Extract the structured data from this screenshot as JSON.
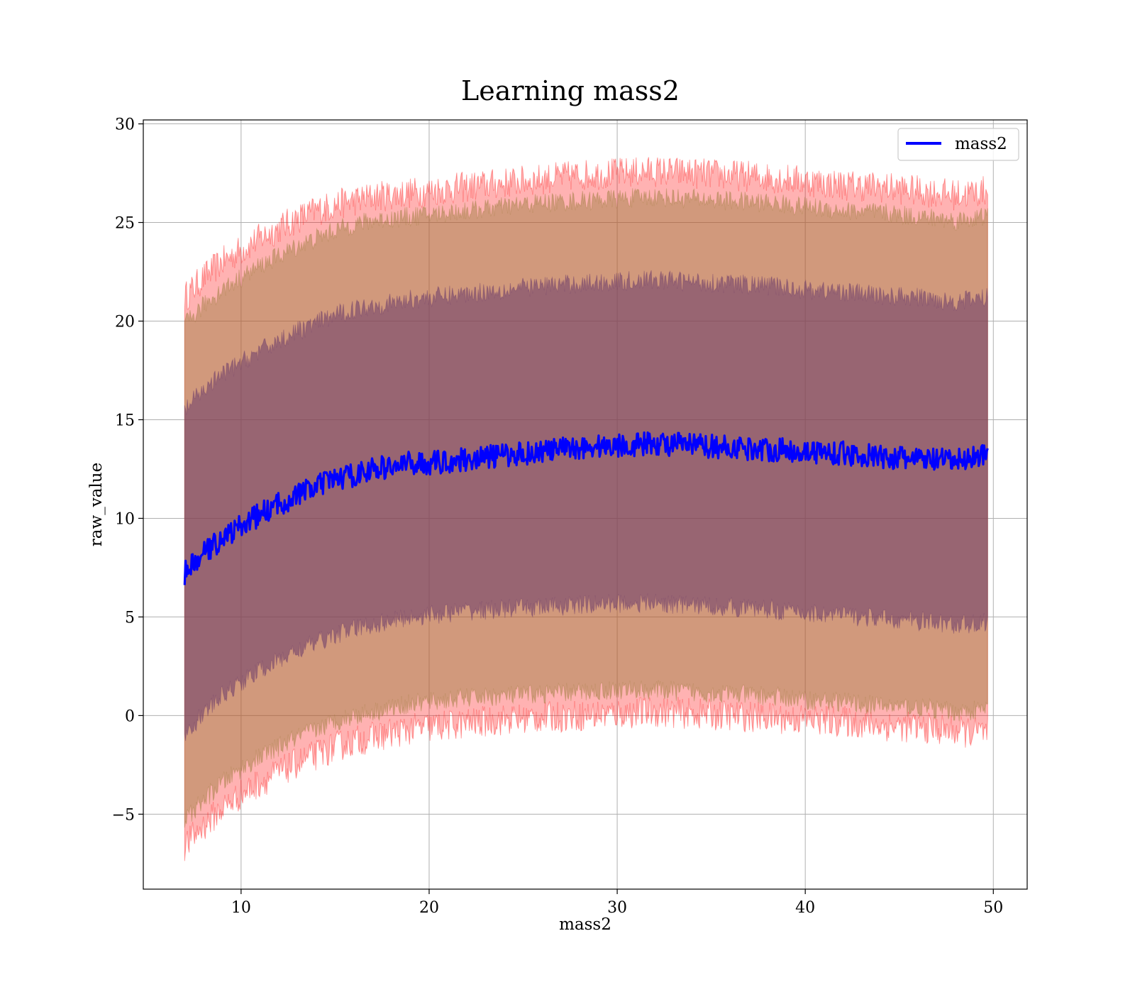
{
  "chart_data": {
    "type": "line",
    "title": "Learning mass2",
    "xlabel": "mass2",
    "ylabel": "raw_value",
    "xlim": [
      4.8,
      51.8
    ],
    "ylim": [
      -8.8,
      30.2
    ],
    "xticks": [
      10,
      20,
      30,
      40,
      50
    ],
    "yticks": [
      -5,
      0,
      5,
      10,
      15,
      20,
      25,
      30
    ],
    "xtick_labels": [
      "10",
      "20",
      "30",
      "40",
      "50"
    ],
    "ytick_labels": [
      "−5",
      "0",
      "5",
      "10",
      "15",
      "20",
      "25",
      "30"
    ],
    "grid": true,
    "legend": {
      "position": "top-right",
      "entries": [
        "mass2"
      ]
    },
    "colors": {
      "mean_line": "#0000ff",
      "band_outer": "#ff0000",
      "band_middle": "#9a7a3a",
      "band_inner": "#6a3a6a",
      "grid": "#b0b0b0"
    },
    "x_range": [
      7.0,
      49.7
    ],
    "series": [
      {
        "name": "mass2",
        "role": "mean",
        "x": [
          7,
          8,
          9,
          10,
          11,
          12,
          13,
          14,
          15,
          16,
          17,
          18,
          19,
          20,
          22,
          24,
          26,
          28,
          30,
          32,
          34,
          36,
          38,
          40,
          42,
          44,
          46,
          48,
          49.7
        ],
        "y": [
          7.2,
          8.2,
          9.0,
          9.6,
          10.2,
          10.7,
          11.2,
          11.6,
          12.0,
          12.2,
          12.5,
          12.6,
          12.8,
          12.8,
          13.0,
          13.2,
          13.4,
          13.6,
          13.7,
          13.8,
          13.7,
          13.6,
          13.5,
          13.4,
          13.3,
          13.1,
          13.0,
          12.9,
          13.3
        ],
        "noise_amplitude": 0.6
      },
      {
        "role": "band",
        "level": "outer",
        "x": [
          7,
          8,
          9,
          10,
          11,
          12,
          13,
          14,
          15,
          16,
          17,
          18,
          19,
          20,
          22,
          24,
          26,
          28,
          30,
          32,
          34,
          36,
          38,
          40,
          42,
          44,
          46,
          48,
          49.7
        ],
        "lower": [
          -6.6,
          -5.6,
          -4.7,
          -4.0,
          -3.4,
          -2.9,
          -2.4,
          -2.0,
          -1.6,
          -1.3,
          -1.1,
          -0.9,
          -0.7,
          -0.6,
          -0.4,
          -0.2,
          -0.1,
          0.0,
          0.1,
          0.2,
          0.1,
          0.0,
          -0.1,
          -0.2,
          -0.3,
          -0.5,
          -0.6,
          -0.8,
          -0.9
        ],
        "upper": [
          21.2,
          22.2,
          23.0,
          23.6,
          24.2,
          24.7,
          25.2,
          25.6,
          25.9,
          26.1,
          26.3,
          26.4,
          26.5,
          26.6,
          26.8,
          27.0,
          27.2,
          27.4,
          27.5,
          27.6,
          27.5,
          27.4,
          27.3,
          27.1,
          26.9,
          26.8,
          26.6,
          26.4,
          26.6
        ],
        "noise_amplitude": 0.8
      },
      {
        "role": "band",
        "level": "middle",
        "x": [
          7,
          8,
          9,
          10,
          11,
          12,
          13,
          14,
          15,
          16,
          17,
          18,
          19,
          20,
          22,
          24,
          26,
          28,
          30,
          32,
          34,
          36,
          38,
          40,
          42,
          44,
          46,
          48,
          49.7
        ],
        "lower": [
          -5.3,
          -4.3,
          -3.4,
          -2.7,
          -2.1,
          -1.6,
          -1.1,
          -0.7,
          -0.3,
          0.0,
          0.2,
          0.4,
          0.6,
          0.7,
          0.9,
          1.0,
          1.1,
          1.2,
          1.3,
          1.3,
          1.2,
          1.1,
          1.0,
          0.8,
          0.7,
          0.5,
          0.4,
          0.2,
          0.3
        ],
        "upper": [
          19.8,
          20.8,
          21.6,
          22.2,
          22.8,
          23.3,
          23.8,
          24.2,
          24.6,
          24.9,
          25.1,
          25.2,
          25.3,
          25.4,
          25.6,
          25.8,
          26.0,
          26.1,
          26.2,
          26.3,
          26.2,
          26.1,
          26.0,
          25.8,
          25.6,
          25.5,
          25.3,
          25.1,
          25.3
        ],
        "noise_amplitude": 0.5
      },
      {
        "role": "band",
        "level": "inner",
        "x": [
          7,
          8,
          9,
          10,
          11,
          12,
          13,
          14,
          15,
          16,
          17,
          18,
          19,
          20,
          22,
          24,
          26,
          28,
          30,
          32,
          34,
          36,
          38,
          40,
          42,
          44,
          46,
          48,
          49.7
        ],
        "lower": [
          -0.9,
          0.1,
          1.0,
          1.7,
          2.3,
          2.8,
          3.3,
          3.7,
          4.1,
          4.4,
          4.6,
          4.8,
          5.0,
          5.1,
          5.3,
          5.4,
          5.5,
          5.6,
          5.7,
          5.7,
          5.6,
          5.5,
          5.4,
          5.2,
          5.1,
          4.9,
          4.8,
          4.6,
          4.7
        ],
        "upper": [
          15.5,
          16.5,
          17.3,
          17.9,
          18.5,
          19.0,
          19.5,
          19.9,
          20.3,
          20.6,
          20.8,
          20.9,
          21.1,
          21.2,
          21.4,
          21.6,
          21.8,
          21.9,
          22.0,
          22.1,
          22.0,
          21.9,
          21.8,
          21.6,
          21.5,
          21.3,
          21.2,
          21.0,
          21.2
        ],
        "noise_amplitude": 0.5
      }
    ]
  }
}
